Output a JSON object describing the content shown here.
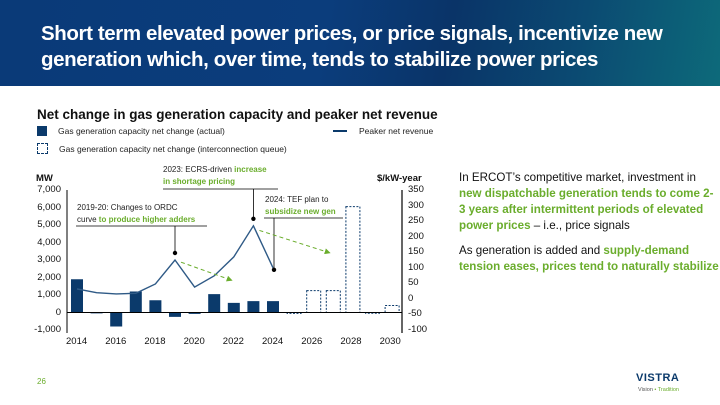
{
  "header": {
    "title": "Short term elevated power prices, or price signals, incentivize new generation which, over time, tends to stabilize power prices"
  },
  "chart_data": {
    "type": "bar",
    "title": "Net change in gas generation capacity and peaker net revenue",
    "legend": [
      {
        "label": "Gas generation capacity net change (actual)",
        "style": "solid",
        "color": "#0b3a6b"
      },
      {
        "label": "Gas generation capacity net change (interconnection queue)",
        "style": "dashed",
        "color": "#0b3a6b"
      },
      {
        "label": "Peaker net revenue",
        "style": "line",
        "color": "#0b3a6b"
      }
    ],
    "legend_position": "top",
    "x": [
      2014,
      2015,
      2016,
      2017,
      2018,
      2019,
      2020,
      2021,
      2022,
      2023,
      2024,
      2025,
      2026,
      2027,
      2028,
      2029,
      2030
    ],
    "x_tick_labels": [
      "2014",
      "2016",
      "2018",
      "2020",
      "2022",
      "2024",
      "2026",
      "2028",
      "2030"
    ],
    "ylabel_left": "MW",
    "ylabel_right": "$/kW-year",
    "ylim_left": [
      -1000,
      7000
    ],
    "ylim_right": [
      -100,
      350
    ],
    "y_ticks_left": [
      "7,000",
      "6,000",
      "5,000",
      "4,000",
      "3,000",
      "2,000",
      "1,000",
      "0",
      "-1,000"
    ],
    "y_ticks_right": [
      "350",
      "300",
      "250",
      "200",
      "150",
      "100",
      "50",
      "0",
      "-50",
      "-100"
    ],
    "series": [
      {
        "name": "Gas generation capacity net change (actual)",
        "type": "bar",
        "axis": "left",
        "x": [
          2014,
          2015,
          2016,
          2017,
          2018,
          2019,
          2020,
          2021,
          2022,
          2023,
          2024
        ],
        "values": [
          1900,
          -50,
          -800,
          1200,
          700,
          -250,
          -80,
          1050,
          550,
          650,
          650
        ]
      },
      {
        "name": "Gas generation capacity net change (interconnection queue)",
        "type": "bar-dashed",
        "axis": "left",
        "x": [
          2025,
          2026,
          2027,
          2028,
          2029,
          2030
        ],
        "values": [
          -50,
          1250,
          1250,
          6050,
          0,
          400
        ]
      },
      {
        "name": "Peaker net revenue",
        "type": "line",
        "axis": "right",
        "x": [
          2014,
          2015,
          2016,
          2017,
          2018,
          2019,
          2020,
          2021,
          2022,
          2023,
          2024
        ],
        "values": [
          32,
          20,
          16,
          18,
          48,
          125,
          38,
          74,
          135,
          235,
          100
        ]
      }
    ],
    "annotations": [
      {
        "text": "2019-20: Changes to ORDC curve ",
        "highlight": "to produce higher adders",
        "year": 2019
      },
      {
        "text": "2023: ECRS-driven ",
        "highlight": "increase in shortage pricing",
        "year": 2023
      },
      {
        "text": "2024: TEF plan to ",
        "highlight": "subsidize new gen",
        "year": 2024
      }
    ],
    "trend_arrows": [
      {
        "from_year": 2019,
        "to_year": 2022,
        "direction": "down"
      },
      {
        "from_year": 2023,
        "to_year": 2027,
        "direction": "down"
      }
    ],
    "grid": false
  },
  "annotations_text": {
    "a1_line1": "2019-20: Changes to ORDC",
    "a1_line2_plain": "curve ",
    "a1_line2_green": "to produce higher adders",
    "a2_line1_plain": "2023: ECRS-driven ",
    "a2_line1_green": "increase",
    "a2_line2_green": "in shortage pricing",
    "a3_line1": "2024: TEF plan to",
    "a3_line2_green": "subsidize new gen"
  },
  "side": {
    "p1_a": "In ERCOT’s competitive market, investment in ",
    "p1_b": "new dispatchable generation tends to come 2-3 years after intermittent periods of elevated power prices",
    "p1_c": " – i.e., price signals",
    "p2_a": "As generation is added and ",
    "p2_b": "supply-demand tension eases, prices tend to naturally stabilize"
  },
  "footer": {
    "page_number": "26",
    "logo": "VISTRA",
    "tagline_a": "Vision",
    "tagline_sep": " • ",
    "tagline_b": "Tradition"
  },
  "colors": {
    "navy": "#0b3a6b",
    "green": "#6aad2c",
    "line": "#2f5a86"
  }
}
